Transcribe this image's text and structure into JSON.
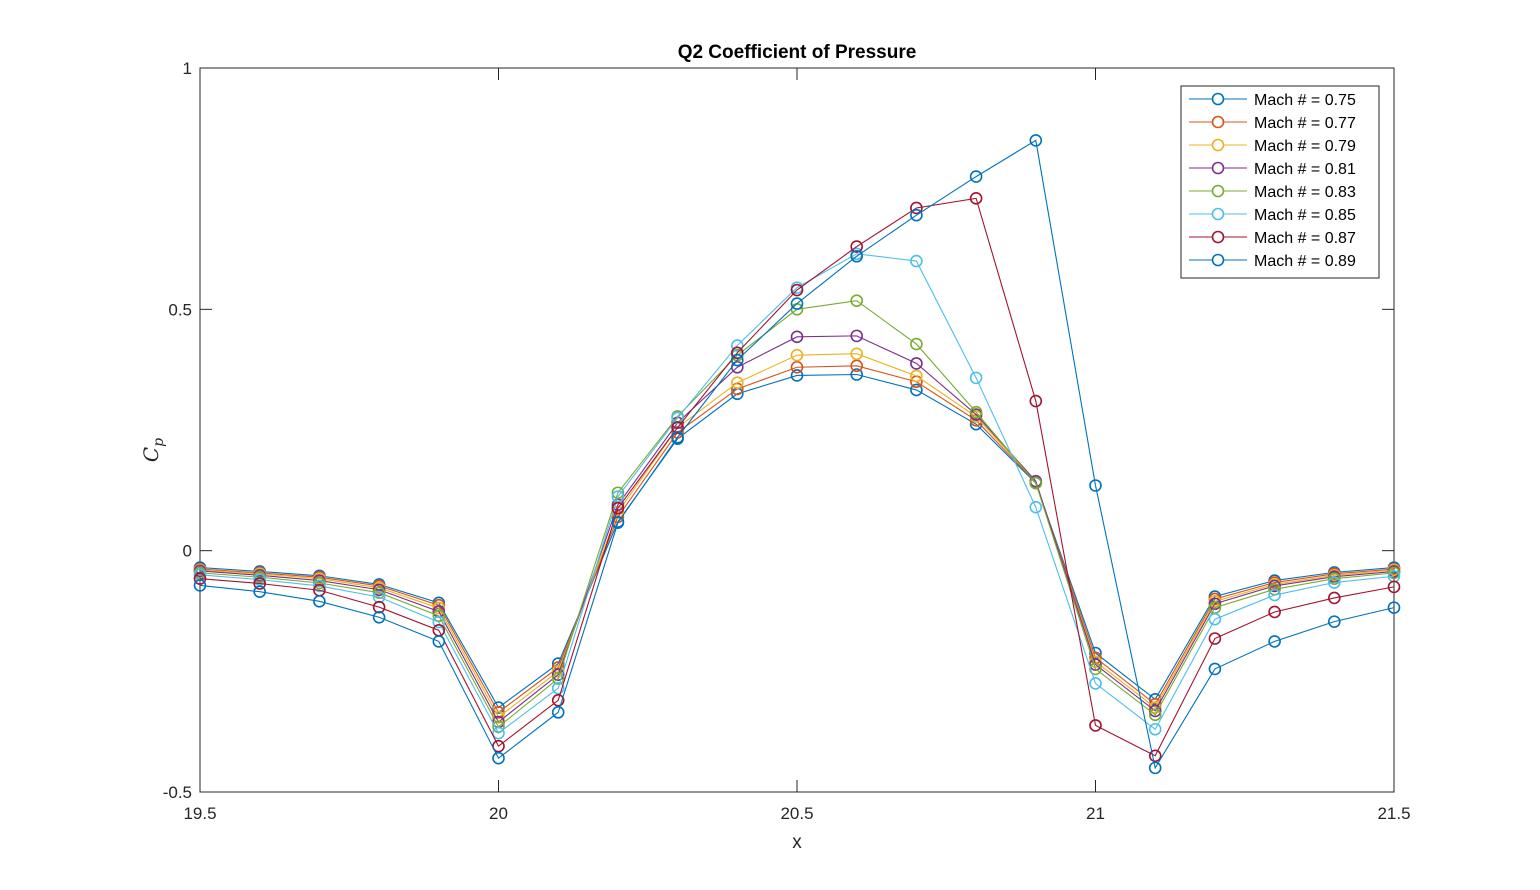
{
  "chart_data": {
    "type": "line",
    "title": "Q2 Coefficient of Pressure",
    "xlabel": "x",
    "ylabel": "C_p",
    "ylabel_display": {
      "base": "C",
      "sub": "p"
    },
    "xlim": [
      19.5,
      21.5
    ],
    "ylim": [
      -0.5,
      1
    ],
    "xticks": [
      19.5,
      20,
      20.5,
      21,
      21.5
    ],
    "xtick_labels": [
      "19.5",
      "20",
      "20.5",
      "21",
      "21.5"
    ],
    "yticks": [
      -0.5,
      0,
      0.5,
      1
    ],
    "ytick_labels": [
      "-0.5",
      "0",
      "0.5",
      "1"
    ],
    "grid": false,
    "legend_position": "top-right",
    "marker": "open-circle",
    "x": [
      19.5,
      19.6,
      19.7,
      19.8,
      19.9,
      20.0,
      20.1,
      20.2,
      20.3,
      20.4,
      20.5,
      20.6,
      20.7,
      20.8,
      20.9,
      21.0,
      21.1,
      21.2,
      21.3,
      21.4,
      21.5
    ],
    "series": [
      {
        "name": "Mach # = 0.75",
        "color": "#0072BD",
        "values": [
          -0.035,
          -0.043,
          -0.052,
          -0.07,
          -0.108,
          -0.325,
          -0.234,
          0.06,
          0.232,
          0.325,
          0.363,
          0.365,
          0.333,
          0.262,
          0.14,
          -0.212,
          -0.308,
          -0.095,
          -0.062,
          -0.045,
          -0.035
        ]
      },
      {
        "name": "Mach # = 0.77",
        "color": "#D95319",
        "values": [
          -0.038,
          -0.046,
          -0.055,
          -0.073,
          -0.113,
          -0.335,
          -0.242,
          0.07,
          0.245,
          0.335,
          0.38,
          0.383,
          0.35,
          0.27,
          0.141,
          -0.222,
          -0.318,
          -0.1,
          -0.066,
          -0.048,
          -0.038
        ]
      },
      {
        "name": "Mach # = 0.79",
        "color": "#EDB120",
        "values": [
          -0.04,
          -0.048,
          -0.058,
          -0.077,
          -0.119,
          -0.345,
          -0.25,
          0.08,
          0.255,
          0.348,
          0.405,
          0.408,
          0.362,
          0.278,
          0.142,
          -0.23,
          -0.325,
          -0.105,
          -0.07,
          -0.051,
          -0.04
        ]
      },
      {
        "name": "Mach # = 0.81",
        "color": "#7E2F8E",
        "values": [
          -0.042,
          -0.051,
          -0.062,
          -0.081,
          -0.126,
          -0.355,
          -0.257,
          0.095,
          0.265,
          0.38,
          0.443,
          0.445,
          0.388,
          0.282,
          0.144,
          -0.236,
          -0.332,
          -0.11,
          -0.073,
          -0.054,
          -0.043
        ]
      },
      {
        "name": "Mach # = 0.83",
        "color": "#77AC30",
        "values": [
          -0.046,
          -0.055,
          -0.067,
          -0.087,
          -0.135,
          -0.365,
          -0.265,
          0.12,
          0.278,
          0.405,
          0.5,
          0.518,
          0.428,
          0.287,
          0.14,
          -0.245,
          -0.34,
          -0.118,
          -0.08,
          -0.058,
          -0.046
        ]
      },
      {
        "name": "Mach # = 0.85",
        "color": "#4DBEEE",
        "values": [
          -0.05,
          -0.06,
          -0.073,
          -0.096,
          -0.148,
          -0.378,
          -0.285,
          0.112,
          0.275,
          0.425,
          0.545,
          0.615,
          0.6,
          0.358,
          0.09,
          -0.275,
          -0.37,
          -0.142,
          -0.092,
          -0.066,
          -0.053
        ]
      },
      {
        "name": "Mach # = 0.87",
        "color": "#A2142F",
        "values": [
          -0.058,
          -0.068,
          -0.082,
          -0.117,
          -0.165,
          -0.405,
          -0.31,
          0.088,
          0.255,
          0.41,
          0.54,
          0.63,
          0.71,
          0.73,
          0.31,
          -0.362,
          -0.425,
          -0.182,
          -0.127,
          -0.098,
          -0.075
        ]
      },
      {
        "name": "Mach # = 0.89",
        "color": "#0072BD",
        "values": [
          -0.072,
          -0.085,
          -0.105,
          -0.138,
          -0.188,
          -0.43,
          -0.335,
          0.058,
          0.235,
          0.395,
          0.512,
          0.61,
          0.695,
          0.775,
          0.85,
          0.135,
          -0.45,
          -0.245,
          -0.188,
          -0.147,
          -0.118
        ]
      }
    ]
  }
}
